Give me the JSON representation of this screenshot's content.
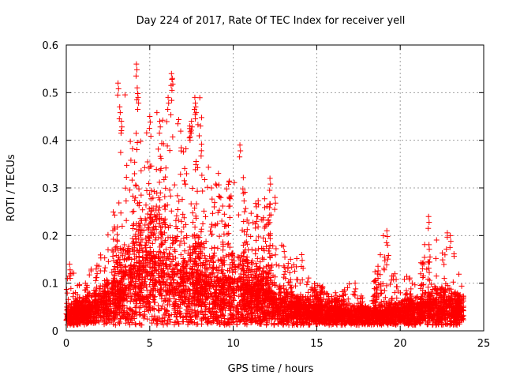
{
  "chart_data": {
    "type": "scatter",
    "title": "Day 224 of 2017, Rate Of TEC Index for receiver yell",
    "xlabel": "GPS time / hours",
    "ylabel": "ROTI / TECUs",
    "xlim": [
      0,
      25
    ],
    "ylim": [
      0,
      0.6
    ],
    "xticks": [
      "0",
      "5",
      "10",
      "15",
      "20",
      "25"
    ],
    "yticks": [
      "0",
      "0.1",
      "0.2",
      "0.3",
      "0.4",
      "0.5",
      "0.6"
    ],
    "grid": true,
    "marker": "+",
    "color": "#ff0000",
    "series": [
      {
        "name": "ROTI",
        "envelope_hours": [
          0,
          1,
          2,
          3,
          3.5,
          4,
          4.5,
          5,
          5.5,
          6,
          6.5,
          7,
          7.5,
          8,
          8.5,
          9,
          9.5,
          10,
          10.5,
          11,
          11.5,
          12,
          12.5,
          13,
          14,
          15,
          16,
          17,
          18,
          19,
          20,
          21,
          22,
          23,
          23.8
        ],
        "envelope_upper": [
          0.14,
          0.1,
          0.16,
          0.3,
          0.52,
          0.4,
          0.56,
          0.42,
          0.48,
          0.44,
          0.54,
          0.38,
          0.44,
          0.5,
          0.35,
          0.36,
          0.32,
          0.36,
          0.39,
          0.28,
          0.3,
          0.32,
          0.26,
          0.18,
          0.16,
          0.1,
          0.08,
          0.1,
          0.06,
          0.21,
          0.1,
          0.14,
          0.24,
          0.2,
          0.08
        ],
        "envelope_typical": [
          0.03,
          0.04,
          0.05,
          0.08,
          0.1,
          0.12,
          0.13,
          0.14,
          0.14,
          0.13,
          0.12,
          0.1,
          0.1,
          0.11,
          0.09,
          0.09,
          0.09,
          0.09,
          0.09,
          0.08,
          0.08,
          0.07,
          0.06,
          0.05,
          0.04,
          0.04,
          0.035,
          0.03,
          0.03,
          0.03,
          0.035,
          0.04,
          0.05,
          0.05,
          0.04
        ],
        "spikes": [
          {
            "x": 3.1,
            "y": 0.52
          },
          {
            "x": 3.2,
            "y": 0.47
          },
          {
            "x": 3.3,
            "y": 0.44
          },
          {
            "x": 4.2,
            "y": 0.56
          },
          {
            "x": 4.25,
            "y": 0.51
          },
          {
            "x": 4.3,
            "y": 0.49
          },
          {
            "x": 6.3,
            "y": 0.54
          },
          {
            "x": 6.35,
            "y": 0.53
          },
          {
            "x": 6.1,
            "y": 0.49
          },
          {
            "x": 7.5,
            "y": 0.44
          },
          {
            "x": 7.4,
            "y": 0.43
          },
          {
            "x": 7.7,
            "y": 0.49
          },
          {
            "x": 7.75,
            "y": 0.47
          },
          {
            "x": 5.0,
            "y": 0.45
          },
          {
            "x": 5.6,
            "y": 0.44
          },
          {
            "x": 10.4,
            "y": 0.39
          },
          {
            "x": 12.2,
            "y": 0.32
          },
          {
            "x": 12.5,
            "y": 0.28
          },
          {
            "x": 19.2,
            "y": 0.21
          },
          {
            "x": 21.7,
            "y": 0.24
          },
          {
            "x": 23.0,
            "y": 0.2
          },
          {
            "x": 0.2,
            "y": 0.14
          },
          {
            "x": 17.3,
            "y": 0.1
          },
          {
            "x": 14.1,
            "y": 0.16
          }
        ]
      }
    ]
  }
}
